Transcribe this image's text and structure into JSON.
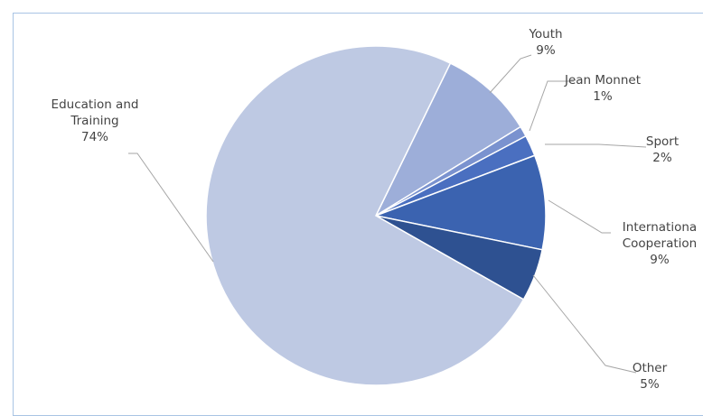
{
  "chart_data": {
    "type": "pie",
    "title": "",
    "categories": [
      "Education and Training",
      "Youth",
      "Jean Monnet",
      "Sport",
      "International Cooperation",
      "Other"
    ],
    "values": [
      74,
      9,
      1,
      2,
      9,
      5
    ],
    "labels": [
      {
        "name_lines": [
          "Education and",
          "Training"
        ],
        "pct": "74%"
      },
      {
        "name_lines": [
          "Youth"
        ],
        "pct": "9%"
      },
      {
        "name_lines": [
          "Jean Monnet"
        ],
        "pct": "1%"
      },
      {
        "name_lines": [
          "Sport"
        ],
        "pct": "2%"
      },
      {
        "name_lines": [
          "Internationa",
          "Cooperation"
        ],
        "pct": "9%"
      },
      {
        "name_lines": [
          "Other"
        ],
        "pct": "5%"
      }
    ],
    "colors": [
      "#bec9e3",
      "#9daed9",
      "#7a92cf",
      "#4a6fc0",
      "#3b63b0",
      "#2e5191"
    ],
    "legend": "none",
    "grid": false
  }
}
